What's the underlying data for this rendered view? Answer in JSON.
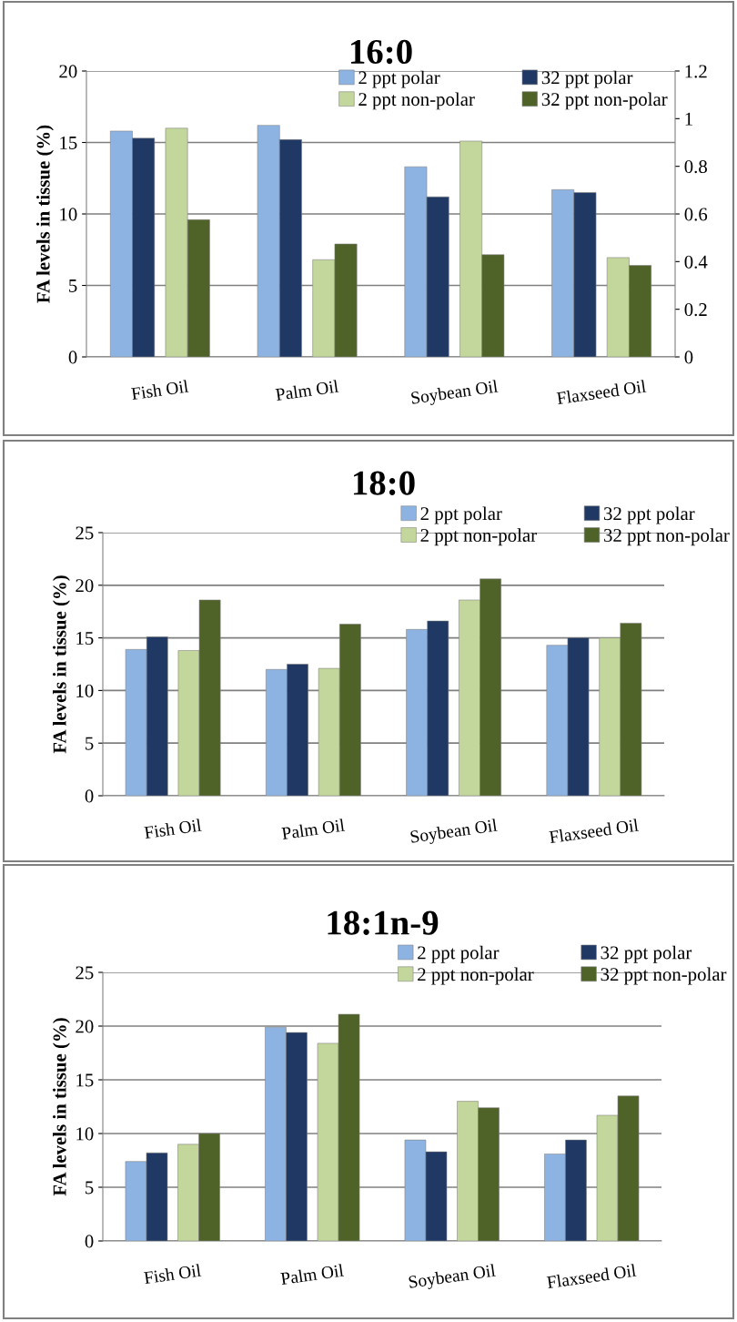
{
  "chart_data": [
    {
      "type": "bar",
      "title": "16:0",
      "ylabel": "FA levels in tissue (%)",
      "categories": [
        "Fish Oil",
        "Palm Oil",
        "Soybean Oil",
        "Flaxseed Oil"
      ],
      "series": [
        {
          "name": "2 ppt polar",
          "color": "#8db3e2",
          "values": [
            15.8,
            16.2,
            13.3,
            11.7
          ]
        },
        {
          "name": "32 ppt polar",
          "color": "#1f3864",
          "values": [
            15.3,
            15.2,
            11.2,
            11.5
          ]
        },
        {
          "name": "2 ppt non-polar",
          "color": "#c3d69b",
          "values": [
            16.0,
            6.8,
            15.1,
            6.95
          ]
        },
        {
          "name": "32 ppt non-polar",
          "color": "#4f6228",
          "values": [
            9.6,
            7.9,
            7.15,
            6.4
          ]
        }
      ],
      "ylim": [
        0,
        20
      ],
      "yticks": [
        0,
        5,
        10,
        15,
        20
      ],
      "y2lim": [
        0,
        1.2
      ],
      "y2ticks": [
        0,
        0.2,
        0.4,
        0.6,
        0.8,
        1,
        1.2
      ],
      "grid": "y",
      "legend": "top right"
    },
    {
      "type": "bar",
      "title": "18:0",
      "ylabel": "FA levels in tissue (%)",
      "categories": [
        "Fish Oil",
        "Palm Oil",
        "Soybean Oil",
        "Flaxseed Oil"
      ],
      "series": [
        {
          "name": "2 ppt polar",
          "color": "#8db3e2",
          "values": [
            13.9,
            12.0,
            15.8,
            14.3
          ]
        },
        {
          "name": "32 ppt polar",
          "color": "#1f3864",
          "values": [
            15.1,
            12.5,
            16.6,
            15.0
          ]
        },
        {
          "name": "2 ppt non-polar",
          "color": "#c3d69b",
          "values": [
            13.8,
            12.1,
            18.6,
            15.0
          ]
        },
        {
          "name": "32 ppt non-polar",
          "color": "#4f6228",
          "values": [
            18.6,
            16.3,
            20.6,
            16.4
          ]
        }
      ],
      "ylim": [
        0,
        25
      ],
      "yticks": [
        0,
        5,
        10,
        15,
        20,
        25
      ],
      "grid": "y",
      "legend": "top right"
    },
    {
      "type": "bar",
      "title": "18:1n-9",
      "ylabel": "FA levels in tissue (%)",
      "categories": [
        "Fish Oil",
        "Palm Oil",
        "Soybean Oil",
        "Flaxseed Oil"
      ],
      "series": [
        {
          "name": "2 ppt polar",
          "color": "#8db3e2",
          "values": [
            7.4,
            19.9,
            9.4,
            8.1
          ]
        },
        {
          "name": "32 ppt polar",
          "color": "#1f3864",
          "values": [
            8.2,
            19.4,
            8.3,
            9.4
          ]
        },
        {
          "name": "2 ppt non-polar",
          "color": "#c3d69b",
          "values": [
            9.0,
            18.4,
            13.0,
            11.7
          ]
        },
        {
          "name": "32 ppt non-polar",
          "color": "#4f6228",
          "values": [
            10.0,
            21.1,
            12.4,
            13.5
          ]
        }
      ],
      "ylim": [
        0,
        25
      ],
      "yticks": [
        0,
        5,
        10,
        15,
        20,
        25
      ],
      "grid": "y",
      "legend": "top right"
    }
  ]
}
